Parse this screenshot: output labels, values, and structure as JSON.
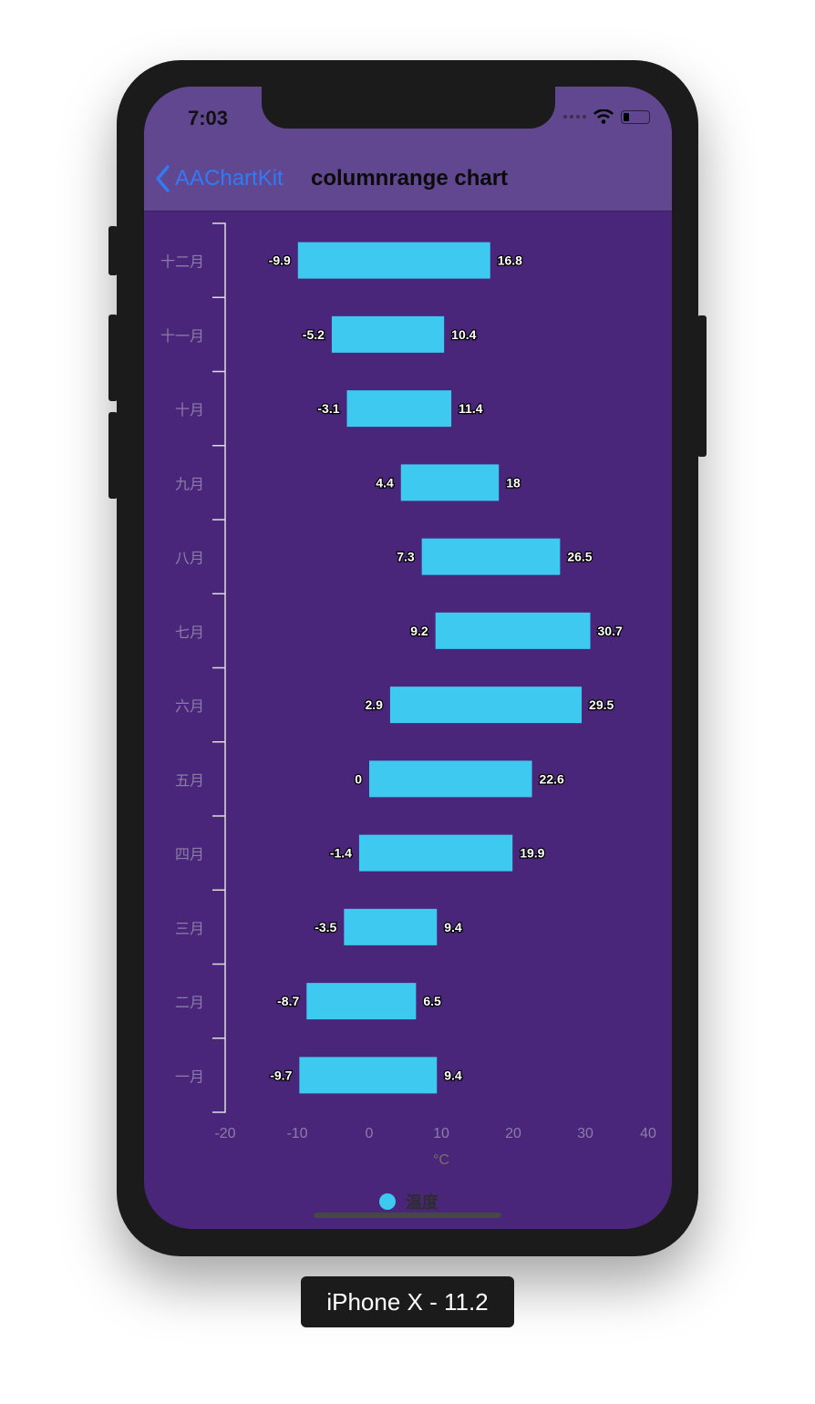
{
  "status_bar": {
    "time": "7:03"
  },
  "nav": {
    "back_label": "AAChartKit",
    "title": "columnrange chart"
  },
  "device_label": "iPhone X - 11.2",
  "colors": {
    "nav_bg": "#614790",
    "chart_bg": "#4a267a",
    "bar": "#3ec9f0",
    "back": "#2f7bf6"
  },
  "chart_data": {
    "type": "columnrange",
    "inverted": true,
    "categories": [
      "一月",
      "二月",
      "三月",
      "四月",
      "五月",
      "六月",
      "七月",
      "八月",
      "九月",
      "十月",
      "十一月",
      "十二月"
    ],
    "series": [
      {
        "name": "温度",
        "low": [
          -9.7,
          -8.7,
          -3.5,
          -1.4,
          0,
          2.9,
          9.2,
          7.3,
          4.4,
          -3.1,
          -5.2,
          -9.9
        ],
        "high": [
          9.4,
          6.5,
          9.4,
          19.9,
          22.6,
          29.5,
          30.7,
          26.5,
          18,
          11.4,
          10.4,
          16.8
        ]
      }
    ],
    "value_axis": {
      "ticks": [
        "-20",
        "-10",
        "0",
        "10",
        "20",
        "30",
        "40"
      ],
      "range": [
        -20,
        40
      ],
      "label": "°C"
    },
    "grid": false,
    "data_labels": true,
    "legend": "bottom-center"
  }
}
